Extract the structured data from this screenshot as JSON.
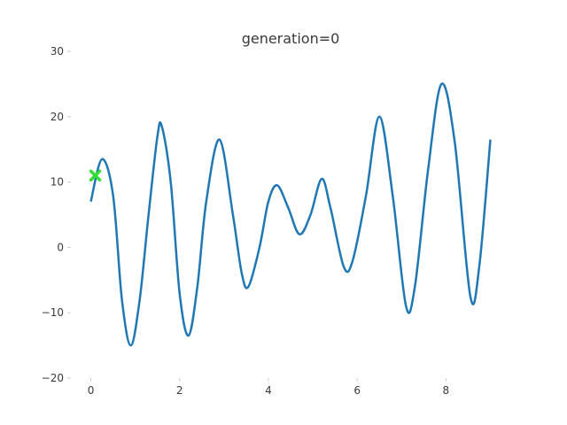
{
  "chart_data": {
    "type": "line",
    "title": "generation=0",
    "xlabel": "",
    "ylabel": "",
    "xlim": [
      -0.45,
      9.45
    ],
    "ylim": [
      -20,
      30
    ],
    "xticks": [
      0,
      2,
      4,
      6,
      8
    ],
    "yticks": [
      -20,
      -10,
      0,
      10,
      20,
      30
    ],
    "xtick_labels": [
      "0",
      "2",
      "4",
      "6",
      "8"
    ],
    "ytick_labels": [
      "−20",
      "−10",
      "0",
      "10",
      "20",
      "30"
    ],
    "grid": false,
    "series": [
      {
        "color": "#1f77b4",
        "x": [
          0.0,
          0.25,
          0.5,
          0.7,
          0.9,
          1.1,
          1.3,
          1.5,
          1.6,
          1.8,
          2.0,
          2.2,
          2.4,
          2.6,
          2.9,
          3.2,
          3.4,
          3.55,
          3.8,
          4.0,
          4.2,
          4.45,
          4.7,
          4.95,
          5.2,
          5.4,
          5.7,
          5.9,
          6.2,
          6.5,
          6.8,
          7.1,
          7.3,
          7.6,
          7.9,
          8.2,
          8.55,
          8.75,
          9.0
        ],
        "y": [
          7,
          13.5,
          8,
          -8,
          -15,
          -8,
          5,
          17,
          18.5,
          10,
          -7,
          -13.5,
          -6,
          7,
          16.5,
          5,
          -4,
          -6,
          0,
          7,
          9.5,
          6,
          2,
          5,
          10.5,
          6,
          -3,
          -2,
          8,
          20,
          8,
          -9,
          -6,
          12,
          25,
          16,
          -7.5,
          -3,
          16.5
        ]
      }
    ],
    "markers": [
      {
        "type": "scatter",
        "x": 0.1,
        "y": 11,
        "color": "#33dd33",
        "symbol": "plus"
      }
    ]
  }
}
